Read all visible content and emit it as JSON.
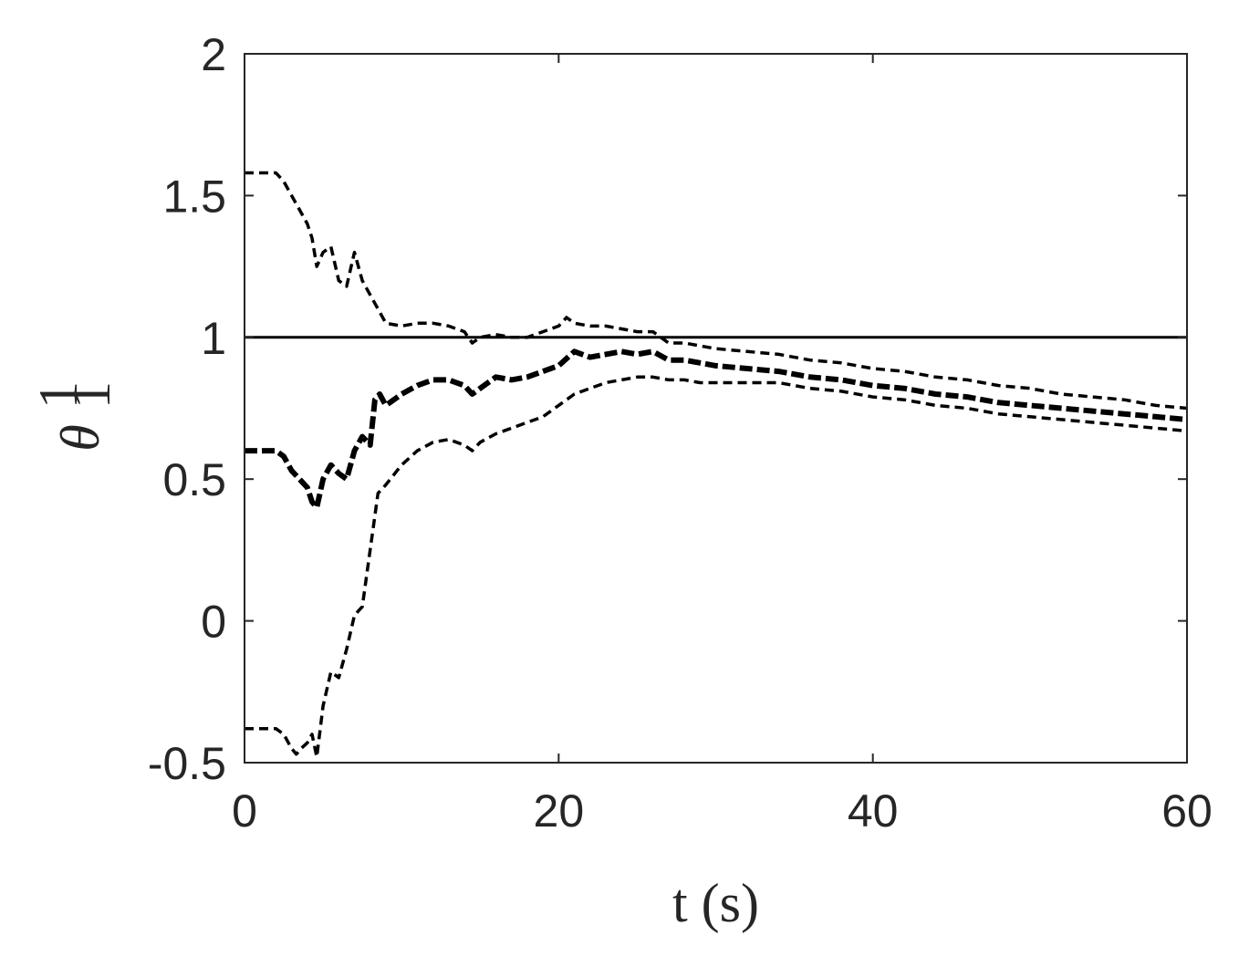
{
  "chart_data": {
    "type": "line",
    "title": "",
    "xlabel": "t (s)",
    "ylabel_symbol": "θ",
    "ylabel_sup": "1",
    "ylabel_sub": "1",
    "xlim": [
      0,
      60
    ],
    "ylim": [
      -0.5,
      2
    ],
    "xticks": [
      0,
      20,
      40,
      60
    ],
    "yticks": [
      -0.5,
      0,
      0.5,
      1,
      1.5,
      2
    ],
    "xtick_labels": [
      "0",
      "20",
      "40",
      "60"
    ],
    "ytick_labels": [
      "-0.5",
      "0",
      "0.5",
      "1",
      "1.5",
      "2"
    ],
    "grid": false,
    "legend": false,
    "colors": {
      "line": "#000000",
      "axis": "#262626"
    },
    "series": [
      {
        "style": "solid",
        "x": [
          0,
          60
        ],
        "y": [
          1.0,
          1.0
        ]
      },
      {
        "style": "thick-dashed",
        "x": [
          0,
          2,
          2.5,
          3,
          3.5,
          4,
          4.3,
          4.6,
          5,
          5.5,
          6,
          6.5,
          7,
          7.5,
          8,
          8.3,
          8.6,
          9,
          10,
          11,
          12,
          13,
          14,
          14.5,
          15,
          16,
          17,
          18,
          19,
          20,
          21,
          22,
          23,
          24,
          25,
          26,
          27,
          28,
          29,
          30,
          32,
          34,
          36,
          38,
          40,
          42,
          44,
          46,
          48,
          50,
          52,
          54,
          56,
          58,
          60
        ],
        "y": [
          0.6,
          0.6,
          0.58,
          0.53,
          0.5,
          0.47,
          0.42,
          0.4,
          0.5,
          0.55,
          0.52,
          0.5,
          0.6,
          0.65,
          0.62,
          0.78,
          0.8,
          0.76,
          0.8,
          0.83,
          0.85,
          0.85,
          0.83,
          0.8,
          0.82,
          0.86,
          0.85,
          0.86,
          0.88,
          0.9,
          0.95,
          0.93,
          0.94,
          0.95,
          0.94,
          0.95,
          0.92,
          0.92,
          0.91,
          0.9,
          0.89,
          0.88,
          0.86,
          0.85,
          0.83,
          0.82,
          0.8,
          0.79,
          0.77,
          0.76,
          0.75,
          0.74,
          0.73,
          0.72,
          0.71
        ]
      },
      {
        "style": "dashed-upper",
        "x": [
          0,
          2,
          2.5,
          3,
          3.5,
          4,
          4.3,
          4.6,
          5,
          5.5,
          6,
          6.5,
          7,
          7.5,
          8,
          8.5,
          9,
          10,
          11,
          12,
          13,
          14,
          14.5,
          15,
          16,
          17,
          18,
          19,
          20,
          20.5,
          21,
          22,
          23,
          24,
          25,
          26,
          27,
          28,
          29,
          30,
          32,
          34,
          36,
          38,
          40,
          42,
          44,
          46,
          48,
          50,
          52,
          54,
          56,
          58,
          60
        ],
        "y": [
          1.58,
          1.58,
          1.55,
          1.5,
          1.45,
          1.4,
          1.35,
          1.25,
          1.3,
          1.32,
          1.2,
          1.18,
          1.3,
          1.2,
          1.15,
          1.1,
          1.05,
          1.04,
          1.05,
          1.05,
          1.04,
          1.02,
          0.98,
          1.0,
          1.01,
          1.0,
          1.0,
          1.02,
          1.04,
          1.07,
          1.05,
          1.04,
          1.04,
          1.03,
          1.02,
          1.02,
          0.98,
          0.98,
          0.97,
          0.96,
          0.95,
          0.94,
          0.92,
          0.91,
          0.89,
          0.88,
          0.86,
          0.85,
          0.83,
          0.82,
          0.8,
          0.79,
          0.78,
          0.76,
          0.75
        ]
      },
      {
        "style": "dashed-lower",
        "x": [
          0,
          2,
          2.5,
          3,
          3.3,
          3.6,
          4,
          4.3,
          4.6,
          5,
          5.5,
          6,
          6.5,
          7,
          7.5,
          8,
          8.5,
          9,
          10,
          11,
          12,
          13,
          14,
          14.5,
          15,
          16,
          17,
          18,
          19,
          20,
          21,
          22,
          23,
          24,
          25,
          26,
          27,
          28,
          29,
          30,
          32,
          34,
          36,
          38,
          40,
          42,
          44,
          46,
          48,
          50,
          52,
          54,
          56,
          58,
          60
        ],
        "y": [
          -0.38,
          -0.38,
          -0.4,
          -0.45,
          -0.47,
          -0.45,
          -0.43,
          -0.4,
          -0.48,
          -0.3,
          -0.18,
          -0.2,
          -0.1,
          0.02,
          0.05,
          0.25,
          0.45,
          0.48,
          0.55,
          0.6,
          0.63,
          0.64,
          0.62,
          0.6,
          0.63,
          0.66,
          0.68,
          0.7,
          0.72,
          0.76,
          0.8,
          0.82,
          0.84,
          0.85,
          0.86,
          0.86,
          0.85,
          0.85,
          0.84,
          0.84,
          0.84,
          0.84,
          0.82,
          0.81,
          0.79,
          0.78,
          0.76,
          0.75,
          0.73,
          0.72,
          0.71,
          0.7,
          0.69,
          0.68,
          0.67
        ]
      }
    ]
  }
}
